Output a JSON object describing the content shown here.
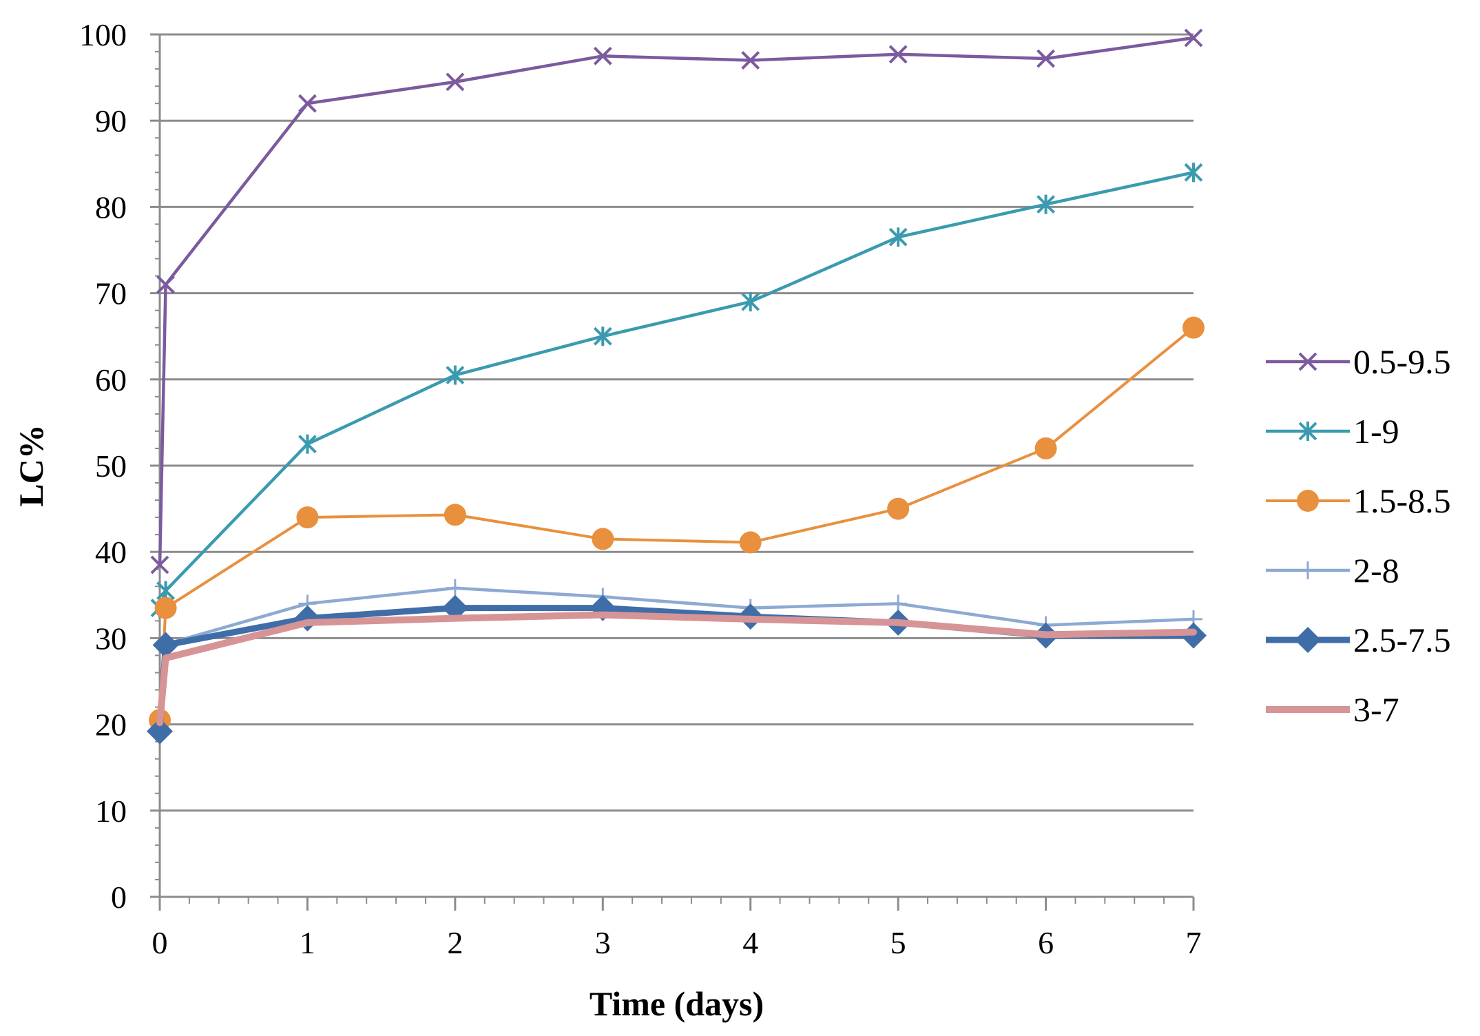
{
  "chart_data": {
    "type": "line",
    "title": "",
    "xlabel": "Time (days)",
    "ylabel": "LC%",
    "xlim": [
      0,
      7
    ],
    "ylim": [
      0,
      100
    ],
    "x_ticks": [
      0,
      1,
      2,
      3,
      4,
      5,
      6,
      7
    ],
    "y_ticks": [
      0,
      10,
      20,
      30,
      40,
      50,
      60,
      70,
      80,
      90,
      100
    ],
    "grid": "horizontal",
    "legend_position": "right",
    "series": [
      {
        "name": "0.5-9.5",
        "color": "#7B5A9E",
        "marker": "x",
        "x": [
          0,
          0.04,
          1,
          2,
          3,
          4,
          5,
          6,
          7
        ],
        "values": [
          38.5,
          71,
          92,
          94.5,
          97.5,
          97,
          97.7,
          97.2,
          99.6
        ]
      },
      {
        "name": "1-9",
        "color": "#3A9BB0",
        "marker": "asterisk",
        "x": [
          0,
          0.04,
          1,
          2,
          3,
          4,
          5,
          6,
          7
        ],
        "values": [
          33.5,
          35.5,
          52.5,
          60.5,
          65,
          69,
          76.5,
          80.3,
          84
        ]
      },
      {
        "name": "1.5-8.5",
        "color": "#E8903E",
        "marker": "circle",
        "x": [
          0,
          0.04,
          1,
          2,
          3,
          4,
          5,
          6,
          7
        ],
        "values": [
          20.5,
          33.5,
          44,
          44.3,
          41.5,
          41.1,
          45,
          52,
          66
        ]
      },
      {
        "name": "2-8",
        "color": "#8EA9D2",
        "marker": "plus",
        "x": [
          0,
          0.04,
          1,
          2,
          3,
          4,
          5,
          6,
          7
        ],
        "values": [
          19.5,
          29.3,
          34,
          35.8,
          34.8,
          33.5,
          34,
          31.5,
          32.2
        ]
      },
      {
        "name": "2.5-7.5",
        "color": "#3F6DA8",
        "marker": "diamond",
        "x": [
          0,
          0.04,
          1,
          2,
          3,
          4,
          5,
          6,
          7
        ],
        "values": [
          19.2,
          29.2,
          32.3,
          33.5,
          33.5,
          32.5,
          31.8,
          30.3,
          30.3
        ]
      },
      {
        "name": "3-7",
        "color": "#D69496",
        "marker": "none",
        "x": [
          0,
          0.04,
          1,
          2,
          3,
          4,
          5,
          6,
          7
        ],
        "values": [
          20.2,
          27.7,
          31.8,
          32.3,
          32.7,
          32.2,
          31.8,
          30.4,
          30.7
        ]
      }
    ]
  }
}
